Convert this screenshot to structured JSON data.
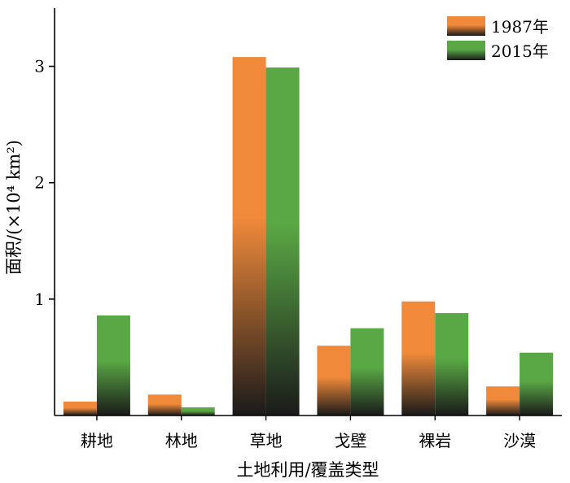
{
  "chart_data": {
    "type": "bar",
    "title": "",
    "xlabel": "土地利用/覆盖类型",
    "ylabel": "面积/(×10⁴ km²)",
    "categories": [
      "耕地",
      "林地",
      "草地",
      "戈壁",
      "裸岩",
      "沙漠"
    ],
    "series": [
      {
        "name": "1987年",
        "values": [
          0.12,
          0.18,
          3.08,
          0.6,
          0.98,
          0.25
        ],
        "color": "#F08A3A"
      },
      {
        "name": "2015年",
        "values": [
          0.86,
          0.07,
          2.99,
          0.75,
          0.88,
          0.54
        ],
        "color": "#5AA845"
      }
    ],
    "bar_gradient_base_color": "#1A1A1A",
    "ylim": [
      0,
      3.5
    ],
    "yticks": [
      1,
      2,
      3
    ],
    "grid": false,
    "legend_position": "top-right"
  }
}
